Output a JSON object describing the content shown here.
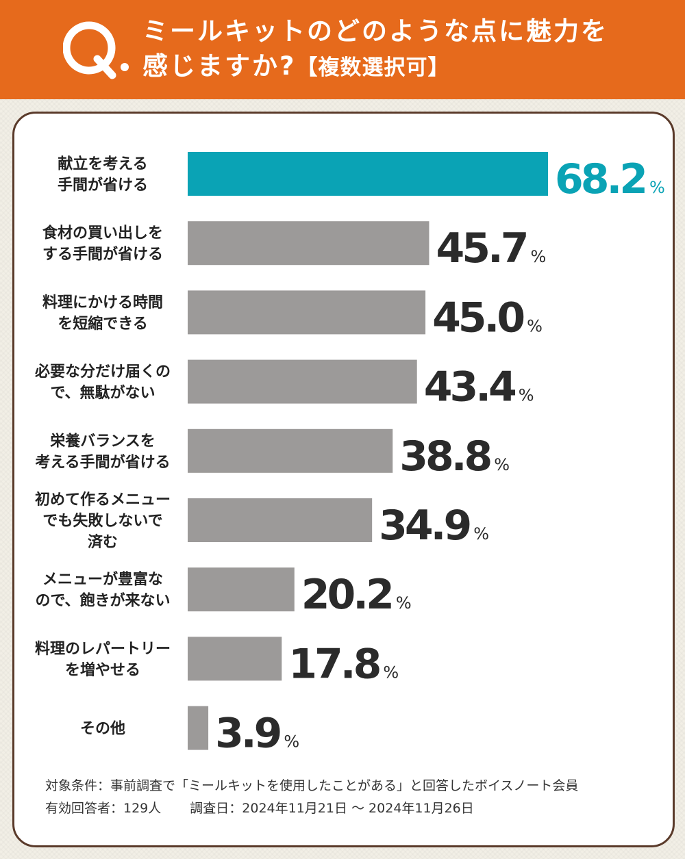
{
  "header": {
    "title_line1": "ミールキットのどのような点に魅力を",
    "title_line2": "感じますか?",
    "title_sub": "【複数選択可】",
    "q_mark": "Q"
  },
  "colors": {
    "header_bg": "#e66a1c",
    "highlight_bar": "#0aa3b5",
    "bar": "#9c9a99",
    "value_text": "#2b2b2b",
    "card_border": "#5a3a2a"
  },
  "chart_data": {
    "type": "bar",
    "orientation": "horizontal",
    "unit": "%",
    "categories": [
      "献立を考える\n手間が省ける",
      "食材の買い出しを\nする手間が省ける",
      "料理にかける時間\nを短縮できる",
      "必要な分だけ届くの\nで、無駄がない",
      "栄養バランスを\n考える手間が省ける",
      "初めて作るメニュー\nでも失敗しないで\n済む",
      "メニューが豊富な\nので、飽きが来ない",
      "料理のレパートリー\nを増やせる",
      "その他"
    ],
    "values": [
      68.2,
      45.7,
      45.0,
      43.4,
      38.8,
      34.9,
      20.2,
      17.8,
      3.9
    ],
    "value_labels": [
      "68.2",
      "45.7",
      "45.0",
      "43.4",
      "38.8",
      "34.9",
      "20.2",
      "17.8",
      "3.9"
    ],
    "highlight_index": 0,
    "xlim": [
      0,
      68.2
    ],
    "grid": false,
    "legend": "none"
  },
  "notes": {
    "condition": "対象条件：事前調査で「ミールキットを使用したことがある」と回答したボイスノート会員",
    "respondents": "有効回答者：129人",
    "survey_date": "調査日：2024年11月21日 〜 2024年11月26日"
  }
}
